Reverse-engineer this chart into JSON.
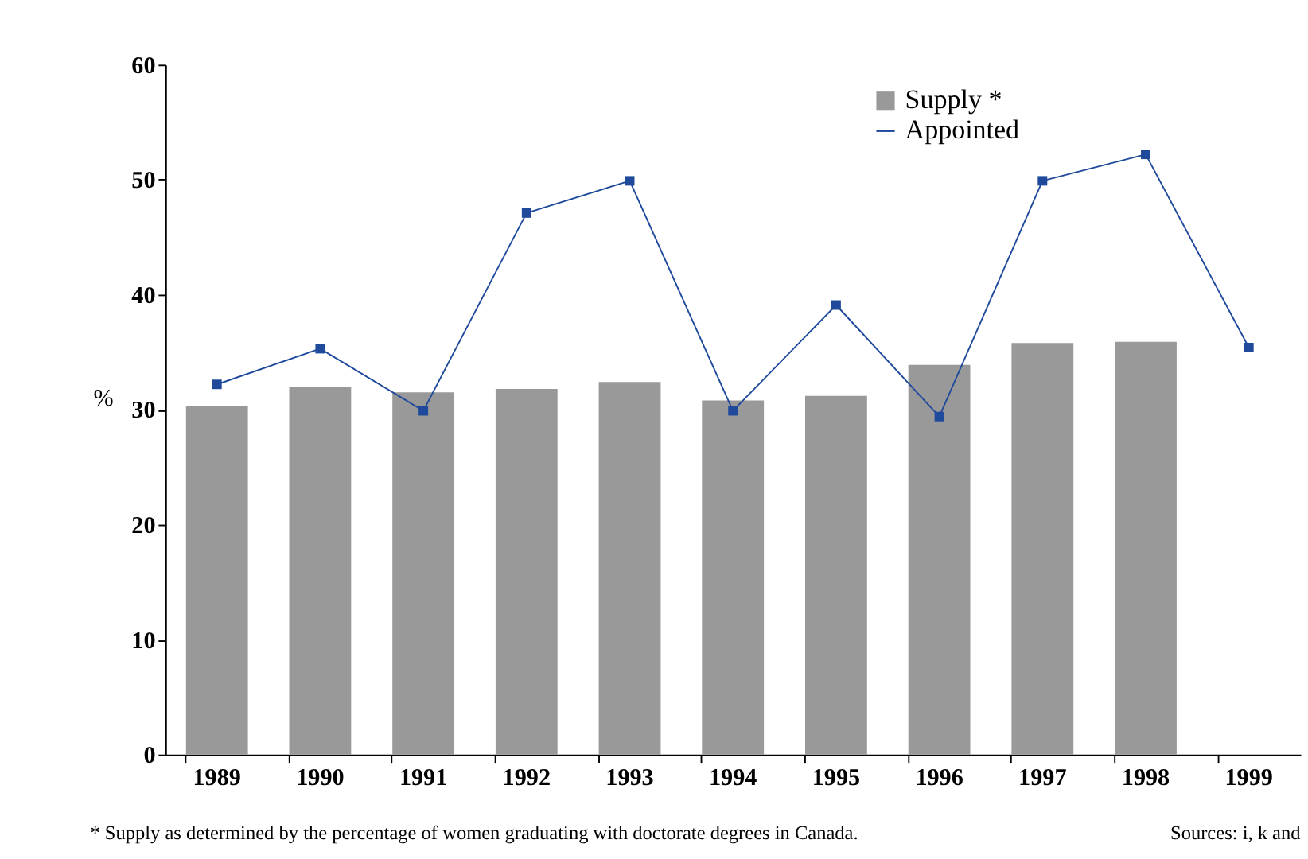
{
  "chart_data": {
    "type": "bar",
    "ylabel": "%",
    "categories": [
      "1989",
      "1990",
      "1991",
      "1992",
      "1993",
      "1994",
      "1995",
      "1996",
      "1997",
      "1998",
      "1999"
    ],
    "series": [
      {
        "name": "Supply *",
        "color": "#999999",
        "values": [
          30.3,
          32.0,
          31.5,
          31.8,
          32.4,
          30.8,
          31.2,
          33.9,
          35.8,
          35.9,
          null
        ]
      },
      {
        "name": "Appointed",
        "type": "line",
        "color": "#1f4a9c",
        "marker": "square",
        "line_style": "solid",
        "values": [
          32.2,
          35.3,
          29.9,
          47.1,
          49.9,
          29.9,
          39.1,
          29.4,
          49.9,
          52.2,
          35.4
        ]
      }
    ],
    "ylim": [
      0,
      60
    ],
    "yticks": [
      0,
      10,
      20,
      30,
      40,
      50,
      60
    ],
    "grid": false,
    "legend": "top right",
    "annotations": [
      "* Supply as determined by the percentage of women graduating with doctorate degrees in Canada.",
      "Sources: i, k and"
    ]
  }
}
